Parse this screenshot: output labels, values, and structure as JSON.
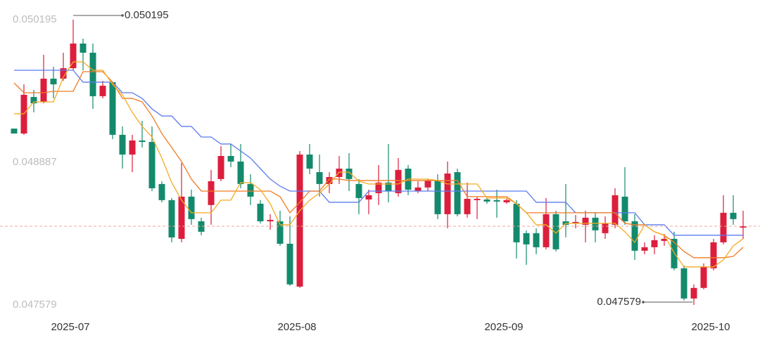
{
  "chart_data": {
    "type": "candlestick",
    "up_color": "#dc1e3c",
    "down_color": "#138a6c",
    "ylim": [
      0.047579,
      0.050195
    ],
    "yticks": [
      0.047579,
      0.048887,
      0.050195
    ],
    "categories": [
      null,
      null,
      null,
      null,
      null,
      null,
      "2025-07",
      null,
      null,
      null,
      null,
      null,
      null,
      null,
      null,
      null,
      null,
      null,
      null,
      null,
      null,
      null,
      null,
      null,
      null,
      null,
      null,
      null,
      null,
      "2025-08",
      null,
      null,
      null,
      null,
      null,
      null,
      null,
      null,
      null,
      null,
      null,
      null,
      null,
      null,
      null,
      null,
      null,
      null,
      null,
      null,
      "2025-09",
      null,
      null,
      null,
      null,
      null,
      null,
      null,
      null,
      null,
      null,
      null,
      null,
      null,
      null,
      null,
      null,
      null,
      null,
      null,
      null,
      "2025-10",
      null,
      null,
      null
    ],
    "open": [
      0.049196,
      0.049151,
      0.049486,
      0.049441,
      0.049654,
      0.049654,
      0.04975,
      0.049976,
      0.049892,
      0.049493,
      0.049622,
      0.049139,
      0.048958,
      0.049087,
      0.049074,
      0.048688,
      0.04854,
      0.048185,
      0.048572,
      0.048346,
      0.048495,
      0.048733,
      0.048945,
      0.048894,
      0.048688,
      0.048507,
      0.048346,
      0.048346,
      0.04814,
      0.047747,
      0.048958,
      0.048797,
      0.048688,
      0.048752,
      0.048829,
      0.048688,
      0.048546,
      0.048604,
      0.048701,
      0.048604,
      0.048829,
      0.048623,
      0.048656,
      0.04872,
      0.048411,
      0.048797,
      0.048411,
      0.04854,
      0.048546,
      0.04854,
      0.04852,
      0.048507,
      0.048237,
      0.048237,
      0.048108,
      0.048411,
      0.048346,
      0.048327,
      0.048314,
      0.048379,
      0.048237,
      0.048314,
      0.048572,
      0.048346,
      0.048076,
      0.048108,
      0.048166,
      0.048185,
      0.047915,
      0.047638,
      0.047735,
      0.047915,
      0.048153,
      0.048424,
      0.048288
    ],
    "high": [
      0.049196,
      0.049602,
      0.049551,
      0.049873,
      0.049763,
      0.049892,
      0.050195,
      0.050021,
      0.049976,
      0.049634,
      0.049622,
      0.049216,
      0.049139,
      0.049267,
      0.049216,
      0.048713,
      0.048559,
      0.048881,
      0.048636,
      0.048379,
      0.048817,
      0.049035,
      0.049055,
      0.049055,
      0.048778,
      0.04854,
      0.048411,
      0.048443,
      0.048391,
      0.04899,
      0.049055,
      0.048958,
      0.048797,
      0.048945,
      0.048971,
      0.048733,
      0.048636,
      0.048862,
      0.049055,
      0.048926,
      0.048862,
      0.048713,
      0.048733,
      0.048778,
      0.048894,
      0.048829,
      0.048701,
      0.048572,
      0.048559,
      0.048636,
      0.048552,
      0.04854,
      0.048263,
      0.048282,
      0.048559,
      0.048443,
      0.048688,
      0.048404,
      0.048443,
      0.04843,
      0.048391,
      0.048649,
      0.048842,
      0.048411,
      0.048153,
      0.048218,
      0.04823,
      0.04825,
      0.047941,
      0.047767,
      0.04796,
      0.048185,
      0.048585,
      0.048585,
      0.048443
    ],
    "low": [
      0.049151,
      0.049139,
      0.049345,
      0.049428,
      0.049473,
      0.049634,
      0.049731,
      0.049731,
      0.049377,
      0.049473,
      0.0491,
      0.048829,
      0.048797,
      0.049023,
      0.048623,
      0.04852,
      0.048153,
      0.048153,
      0.048314,
      0.048218,
      0.048314,
      0.048713,
      0.048842,
      0.048649,
      0.048495,
      0.048327,
      0.048269,
      0.048121,
      0.047754,
      0.047735,
      0.048778,
      0.048572,
      0.048604,
      0.048688,
      0.048623,
      0.048411,
      0.048411,
      0.048495,
      0.04852,
      0.048572,
      0.048585,
      0.048604,
      0.048623,
      0.048366,
      0.048282,
      0.048391,
      0.048379,
      0.048366,
      0.048507,
      0.048379,
      0.048507,
      0.048005,
      0.047947,
      0.048044,
      0.048089,
      0.048069,
      0.048198,
      0.048282,
      0.048153,
      0.048153,
      0.048185,
      0.048282,
      0.048314,
      0.047992,
      0.048044,
      0.048044,
      0.048121,
      0.047896,
      0.047619,
      0.047579,
      0.047722,
      0.047896,
      0.048134,
      0.048314,
      0.048185
    ],
    "close": [
      0.049151,
      0.049506,
      0.049428,
      0.049654,
      0.049602,
      0.04975,
      0.049976,
      0.049892,
      0.049493,
      0.049589,
      0.049139,
      0.048958,
      0.049087,
      0.049074,
      0.048649,
      0.04854,
      0.048198,
      0.048572,
      0.048366,
      0.04825,
      0.048713,
      0.048945,
      0.048894,
      0.048688,
      0.048572,
      0.048346,
      0.048359,
      0.04814,
      0.047767,
      0.048958,
      0.048829,
      0.048688,
      0.048752,
      0.048829,
      0.048733,
      0.048559,
      0.048585,
      0.048701,
      0.048623,
      0.048817,
      0.048636,
      0.048656,
      0.04872,
      0.048411,
      0.048784,
      0.048411,
      0.048552,
      0.048552,
      0.048527,
      0.048527,
      0.04854,
      0.048153,
      0.048134,
      0.048108,
      0.048411,
      0.048089,
      0.048314,
      0.04834,
      0.048379,
      0.048263,
      0.048327,
      0.048585,
      0.048346,
      0.048076,
      0.048108,
      0.048173,
      0.048185,
      0.047915,
      0.047638,
      0.047735,
      0.047928,
      0.048153,
      0.048424,
      0.048366,
      0.048301
    ],
    "lines": [
      {
        "color": "#5b7cf0",
        "values": [
          0.049731,
          0.049731,
          0.049731,
          0.049731,
          0.049731,
          0.049731,
          0.049731,
          0.049622,
          0.049622,
          0.049622,
          0.049622,
          0.049525,
          0.049525,
          0.049473,
          0.049377,
          0.049312,
          0.049312,
          0.049216,
          0.049216,
          0.049119,
          0.049119,
          0.049055,
          0.049055,
          0.04899,
          0.048926,
          0.048829,
          0.048733,
          0.048668,
          0.048623,
          0.048623,
          0.048623,
          0.048623,
          0.04852,
          0.04852,
          0.04852,
          0.04852,
          0.048623,
          0.048623,
          0.048623,
          0.048623,
          0.048623,
          0.048623,
          0.048623,
          0.048623,
          0.048623,
          0.048623,
          0.048623,
          0.048623,
          0.048623,
          0.048623,
          0.048623,
          0.048623,
          0.048623,
          0.04852,
          0.04852,
          0.04852,
          0.04852,
          0.048424,
          0.048424,
          0.048424,
          0.048424,
          0.048424,
          0.048424,
          0.048424,
          0.048314,
          0.048314,
          0.048314,
          0.048218,
          0.048218,
          0.048218,
          0.048218,
          0.048218,
          0.048218,
          0.048218,
          0.048218
        ]
      },
      {
        "color": "#f07b22",
        "values": [
          0.049615,
          0.049525,
          0.049525,
          0.049525,
          0.049538,
          0.049538,
          0.049538,
          0.049718,
          0.049718,
          0.049718,
          0.049622,
          0.049473,
          0.049473,
          0.049441,
          0.049312,
          0.049151,
          0.049023,
          0.048894,
          0.048733,
          0.048623,
          0.048623,
          0.048623,
          0.048623,
          0.048623,
          0.048623,
          0.048623,
          0.048623,
          0.048572,
          0.048424,
          0.04852,
          0.048623,
          0.048623,
          0.048733,
          0.048733,
          0.04872,
          0.04872,
          0.04872,
          0.04872,
          0.04872,
          0.04872,
          0.04872,
          0.04872,
          0.04872,
          0.04872,
          0.04872,
          0.04872,
          0.048572,
          0.048572,
          0.048572,
          0.048572,
          0.048572,
          0.048507,
          0.048424,
          0.048424,
          0.048424,
          0.048424,
          0.048424,
          0.048424,
          0.048424,
          0.048424,
          0.048424,
          0.048424,
          0.048327,
          0.048314,
          0.048314,
          0.04825,
          0.048218,
          0.048153,
          0.048069,
          0.048012,
          0.048012,
          0.048012,
          0.048012,
          0.048024,
          0.048108
        ]
      },
      {
        "color": "#f5aa23",
        "values": [
          0.049332,
          0.049332,
          0.049441,
          0.049441,
          0.049441,
          0.049667,
          0.049808,
          0.049808,
          0.049731,
          0.049731,
          0.049602,
          0.049506,
          0.049345,
          0.049216,
          0.049119,
          0.048926,
          0.048701,
          0.04854,
          0.048424,
          0.048424,
          0.048424,
          0.04854,
          0.04854,
          0.048701,
          0.048701,
          0.048636,
          0.048507,
          0.048314,
          0.048314,
          0.048443,
          0.04854,
          0.048604,
          0.048688,
          0.048797,
          0.048797,
          0.048713,
          0.048688,
          0.048688,
          0.048688,
          0.048688,
          0.048733,
          0.048733,
          0.048733,
          0.04872,
          0.048688,
          0.048688,
          0.048688,
          0.048688,
          0.048559,
          0.048559,
          0.048559,
          0.048507,
          0.048424,
          0.048314,
          0.048314,
          0.048237,
          0.048327,
          0.048327,
          0.048327,
          0.048327,
          0.048327,
          0.048327,
          0.04825,
          0.048153,
          0.048314,
          0.04825,
          0.048218,
          0.048057,
          0.047928,
          0.047928,
          0.047928,
          0.047928,
          0.047992,
          0.048121,
          0.048185
        ]
      }
    ]
  }
}
